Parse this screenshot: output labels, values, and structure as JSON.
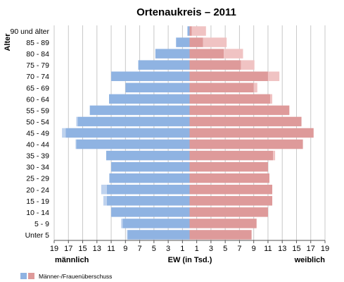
{
  "chart_data": {
    "type": "bar",
    "orientation": "horizontal-pyramid",
    "title": "Ortenaukreis – 2011",
    "ylabel": "Alter",
    "xlabel": "EW (in Tsd.)",
    "left_label": "männlich",
    "right_label": "weiblich",
    "legend_label": "Männer-/Frauenüberschuss",
    "xlim": [
      -19,
      19
    ],
    "x_tick_labels": [
      "19",
      "17",
      "15",
      "13",
      "11",
      "9",
      "7",
      "5",
      "3",
      "1",
      "1",
      "3",
      "5",
      "7",
      "9",
      "11",
      "13",
      "15",
      "17",
      "19"
    ],
    "categories": [
      "90 und älter",
      "85 - 89",
      "80 - 84",
      "75 - 79",
      "70 - 74",
      "65 - 69",
      "60 - 64",
      "55 - 59",
      "50 - 54",
      "45 - 49",
      "40 - 44",
      "35 - 39",
      "30 - 34",
      "25 - 29",
      "20 - 24",
      "15 - 19",
      "10 - 14",
      "5 - 9",
      "Unter 5"
    ],
    "series": [
      {
        "name": "männlich",
        "values": [
          0.3,
          1.9,
          4.8,
          7.2,
          11.0,
          9.0,
          11.3,
          14.0,
          15.9,
          17.9,
          16.0,
          11.7,
          11.0,
          11.3,
          12.4,
          12.1,
          11.0,
          9.6,
          8.8
        ]
      },
      {
        "name": "weiblich",
        "values": [
          2.3,
          5.2,
          7.5,
          9.1,
          12.6,
          9.5,
          11.6,
          14.0,
          15.7,
          17.4,
          15.9,
          12.0,
          11.0,
          11.2,
          11.6,
          11.6,
          11.0,
          9.4,
          8.7
        ]
      }
    ],
    "colors": {
      "male": "#8FB3E2",
      "male_surplus": "#BED2EE",
      "female": "#DE9A9A",
      "female_surplus": "#F0C3C3",
      "grid": "#c8c8c8",
      "axis": "#555555"
    }
  }
}
